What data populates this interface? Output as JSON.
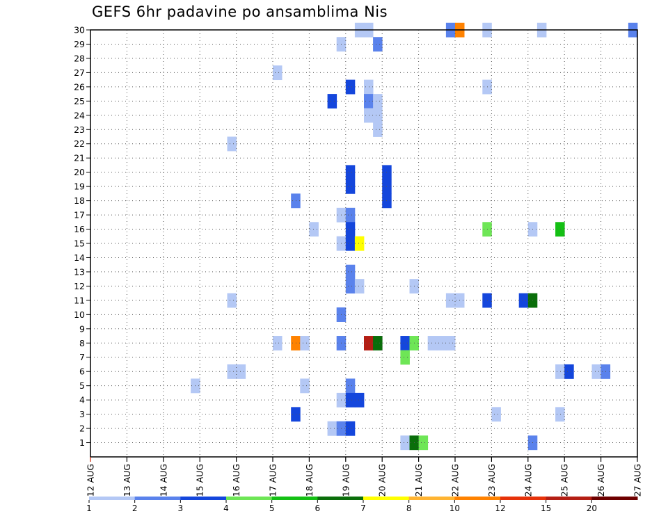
{
  "chart_data": {
    "type": "heatmap",
    "title": "GEFS 6hr padavine po ansamblima Nis",
    "xlabel": "",
    "ylabel": "",
    "x_tick_labels": [
      "12 AUG",
      "13 AUG",
      "14 AUG",
      "15 AUG",
      "16 AUG",
      "17 AUG",
      "18 AUG",
      "19 AUG",
      "20 AUG",
      "21 AUG",
      "22 AUG",
      "23 AUG",
      "24 AUG",
      "25 AUG",
      "26 AUG",
      "27 AUG"
    ],
    "y_tick_labels": [
      "1",
      "2",
      "3",
      "4",
      "5",
      "6",
      "7",
      "8",
      "9",
      "10",
      "11",
      "12",
      "13",
      "14",
      "15",
      "16",
      "17",
      "18",
      "19",
      "20",
      "21",
      "22",
      "23",
      "24",
      "25",
      "26",
      "27",
      "28",
      "29",
      "30"
    ],
    "y_range": [
      0,
      30
    ],
    "time_step_hours": 6,
    "grid": true,
    "legend_placement": "bottom",
    "legend": {
      "levels": [
        "1",
        "2",
        "3",
        "4",
        "5",
        "6",
        "7",
        "8",
        "10",
        "12",
        "15",
        "20"
      ],
      "colors": [
        "#b4c8f5",
        "#5a82ec",
        "#1446dc",
        "#6ee656",
        "#14c014",
        "#0a6e0a",
        "#ffff00",
        "#ffb432",
        "#ff8200",
        "#e6320a",
        "#b41e14",
        "#6e0000"
      ]
    },
    "cells": [
      [
        30,
        "19 AUG",
        1,
        "#b4c8f5"
      ],
      [
        30,
        "19 AUG",
        2,
        "#b4c8f5"
      ],
      [
        30,
        "21 AUG",
        3,
        "#5a82ec"
      ],
      [
        30,
        "22 AUG",
        0,
        "#ff8200"
      ],
      [
        30,
        "22 AUG",
        3,
        "#b4c8f5"
      ],
      [
        30,
        "24 AUG",
        1,
        "#b4c8f5"
      ],
      [
        30,
        "26 AUG",
        3,
        "#5a82ec"
      ],
      [
        29,
        "18 AUG",
        3,
        "#b4c8f5"
      ],
      [
        29,
        "19 AUG",
        3,
        "#5a82ec"
      ],
      [
        27,
        "17 AUG",
        0,
        "#b4c8f5"
      ],
      [
        26,
        "19 AUG",
        0,
        "#1446dc"
      ],
      [
        26,
        "19 AUG",
        2,
        "#b4c8f5"
      ],
      [
        26,
        "22 AUG",
        3,
        "#b4c8f5"
      ],
      [
        25,
        "18 AUG",
        2,
        "#1446dc"
      ],
      [
        25,
        "19 AUG",
        2,
        "#5a82ec"
      ],
      [
        25,
        "19 AUG",
        3,
        "#b4c8f5"
      ],
      [
        24,
        "19 AUG",
        2,
        "#b4c8f5"
      ],
      [
        24,
        "19 AUG",
        3,
        "#b4c8f5"
      ],
      [
        23,
        "19 AUG",
        3,
        "#b4c8f5"
      ],
      [
        22,
        "15 AUG",
        3,
        "#b4c8f5"
      ],
      [
        20,
        "19 AUG",
        0,
        "#1446dc"
      ],
      [
        20,
        "20 AUG",
        0,
        "#1446dc"
      ],
      [
        19,
        "19 AUG",
        0,
        "#1446dc"
      ],
      [
        19,
        "20 AUG",
        0,
        "#1446dc"
      ],
      [
        18,
        "17 AUG",
        2,
        "#5a82ec"
      ],
      [
        18,
        "20 AUG",
        0,
        "#1446dc"
      ],
      [
        17,
        "18 AUG",
        3,
        "#b4c8f5"
      ],
      [
        17,
        "19 AUG",
        0,
        "#5a82ec"
      ],
      [
        16,
        "18 AUG",
        0,
        "#b4c8f5"
      ],
      [
        16,
        "19 AUG",
        0,
        "#1446dc"
      ],
      [
        16,
        "22 AUG",
        3,
        "#6ee656"
      ],
      [
        16,
        "24 AUG",
        0,
        "#b4c8f5"
      ],
      [
        16,
        "24 AUG",
        3,
        "#14c014"
      ],
      [
        15,
        "18 AUG",
        3,
        "#b4c8f5"
      ],
      [
        15,
        "19 AUG",
        0,
        "#1446dc"
      ],
      [
        15,
        "19 AUG",
        1,
        "#ffff00"
      ],
      [
        13,
        "19 AUG",
        0,
        "#5a82ec"
      ],
      [
        12,
        "19 AUG",
        0,
        "#5a82ec"
      ],
      [
        12,
        "19 AUG",
        1,
        "#b4c8f5"
      ],
      [
        12,
        "20 AUG",
        3,
        "#b4c8f5"
      ],
      [
        11,
        "15 AUG",
        3,
        "#b4c8f5"
      ],
      [
        11,
        "21 AUG",
        3,
        "#b4c8f5"
      ],
      [
        11,
        "22 AUG",
        0,
        "#b4c8f5"
      ],
      [
        11,
        "22 AUG",
        3,
        "#1446dc"
      ],
      [
        11,
        "23 AUG",
        3,
        "#1446dc"
      ],
      [
        11,
        "24 AUG",
        0,
        "#0a6e0a"
      ],
      [
        10,
        "18 AUG",
        3,
        "#5a82ec"
      ],
      [
        8,
        "17 AUG",
        0,
        "#b4c8f5"
      ],
      [
        8,
        "17 AUG",
        2,
        "#ff8200"
      ],
      [
        8,
        "17 AUG",
        3,
        "#b4c8f5"
      ],
      [
        8,
        "18 AUG",
        3,
        "#5a82ec"
      ],
      [
        8,
        "19 AUG",
        2,
        "#b41e14"
      ],
      [
        8,
        "19 AUG",
        3,
        "#0a6e0a"
      ],
      [
        8,
        "20 AUG",
        2,
        "#1446dc"
      ],
      [
        8,
        "20 AUG",
        3,
        "#6ee656"
      ],
      [
        8,
        "21 AUG",
        1,
        "#b4c8f5"
      ],
      [
        8,
        "21 AUG",
        2,
        "#b4c8f5"
      ],
      [
        8,
        "21 AUG",
        3,
        "#b4c8f5"
      ],
      [
        7,
        "20 AUG",
        2,
        "#6ee656"
      ],
      [
        6,
        "15 AUG",
        3,
        "#b4c8f5"
      ],
      [
        6,
        "16 AUG",
        0,
        "#b4c8f5"
      ],
      [
        6,
        "24 AUG",
        3,
        "#b4c8f5"
      ],
      [
        6,
        "25 AUG",
        0,
        "#1446dc"
      ],
      [
        6,
        "25 AUG",
        3,
        "#b4c8f5"
      ],
      [
        6,
        "26 AUG",
        0,
        "#5a82ec"
      ],
      [
        5,
        "14 AUG",
        3,
        "#b4c8f5"
      ],
      [
        5,
        "17 AUG",
        3,
        "#b4c8f5"
      ],
      [
        5,
        "19 AUG",
        0,
        "#5a82ec"
      ],
      [
        4,
        "18 AUG",
        3,
        "#b4c8f5"
      ],
      [
        4,
        "19 AUG",
        0,
        "#1446dc"
      ],
      [
        4,
        "19 AUG",
        1,
        "#1446dc"
      ],
      [
        3,
        "17 AUG",
        2,
        "#1446dc"
      ],
      [
        3,
        "23 AUG",
        0,
        "#b4c8f5"
      ],
      [
        3,
        "24 AUG",
        3,
        "#b4c8f5"
      ],
      [
        2,
        "18 AUG",
        2,
        "#b4c8f5"
      ],
      [
        2,
        "18 AUG",
        3,
        "#5a82ec"
      ],
      [
        2,
        "19 AUG",
        0,
        "#1446dc"
      ],
      [
        1,
        "20 AUG",
        2,
        "#b4c8f5"
      ],
      [
        1,
        "20 AUG",
        3,
        "#0a6e0a"
      ],
      [
        1,
        "21 AUG",
        0,
        "#6ee656"
      ],
      [
        1,
        "24 AUG",
        0,
        "#5a82ec"
      ]
    ]
  }
}
